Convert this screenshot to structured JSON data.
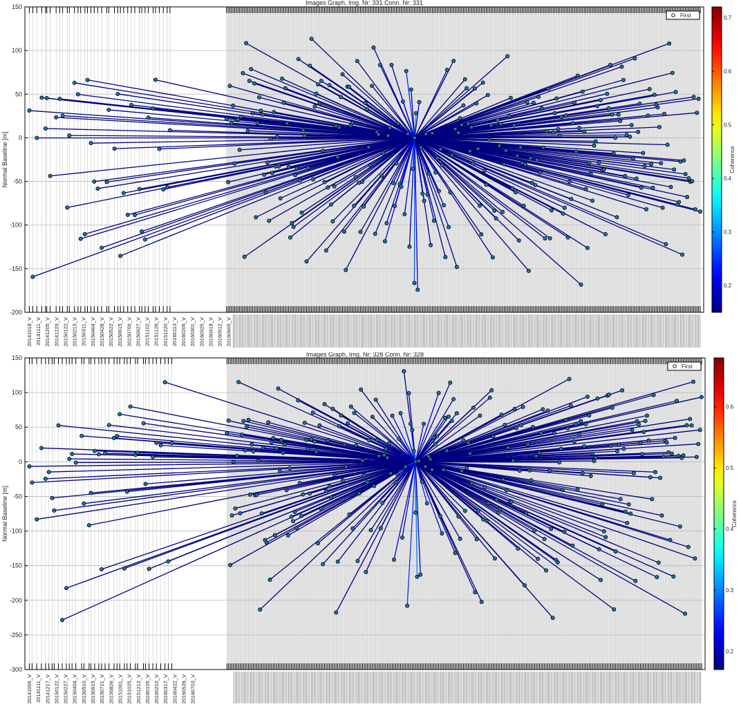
{
  "chart_data": [
    {
      "type": "scatter",
      "title": "Images Graph, Img. Nr: 331 Conn. Nr: 331",
      "ylabel": "Normal Baseline [m]",
      "ylim": [
        -200,
        150
      ],
      "yticks": [
        150,
        100,
        50,
        0,
        -50,
        -100,
        -150,
        -200
      ],
      "legend": {
        "label": "First",
        "position": "top-right"
      },
      "colorbar": {
        "label": "Coherence",
        "ticks": [
          "0.7",
          "0.6",
          "0.5",
          "0.4",
          "0.3",
          "0.2"
        ],
        "range": [
          0.15,
          0.72
        ]
      },
      "x_tick_labels": [
        "20141018_V",
        "20141111_V",
        "20141205_V",
        "20141229_V",
        "20150122_V",
        "20150215_V",
        "20150311_V",
        "20150404_V",
        "20150428_V",
        "20150522_V",
        "20150615_V",
        "20150709_V",
        "20150927_V",
        "20151102_V",
        "20151126_V",
        "20151220_V",
        "20160113_V",
        "20160206_V",
        "20160301_V",
        "20160325_V",
        "20160418_V",
        "20160512_V",
        "20160605_V"
      ],
      "grid": true,
      "master": {
        "t": 0.575,
        "b": 0
      },
      "connections": {
        "count": 331,
        "baseline_range": [
          -175,
          120
        ],
        "coherence_range": [
          0.15,
          0.32
        ]
      }
    },
    {
      "type": "scatter",
      "title": "Images Graph, Img. Nr: 328 Conn. Nr: 328",
      "ylabel": "Normal Baseline [m]",
      "ylim": [
        -300,
        150
      ],
      "yticks": [
        150,
        100,
        50,
        0,
        -50,
        -100,
        -150,
        -200,
        -250,
        -300
      ],
      "legend": {
        "label": "First",
        "position": "top-right"
      },
      "colorbar": {
        "label": "Coherence",
        "ticks": [
          "0.6",
          "0.5",
          "0.4",
          "0.3",
          "0.2"
        ],
        "range": [
          0.17,
          0.68
        ]
      },
      "x_tick_labels": [
        "20141006_V",
        "20141111_V",
        "20141217_V",
        "20150122_V",
        "20150227_V",
        "20150404_V",
        "20150510_V",
        "20150615_V",
        "20150721_V",
        "20150826_V",
        "20151001_V",
        "20151025_V",
        "20151212_V",
        "20160105_V",
        "20160210_V",
        "20160317_V",
        "20160422_V",
        "20160528_V",
        "20160703_V"
      ],
      "grid": true,
      "master": {
        "t": 0.575,
        "b": 0
      },
      "connections": {
        "count": 328,
        "baseline_range": [
          -250,
          128
        ],
        "coherence_range": [
          0.17,
          0.32
        ]
      }
    }
  ]
}
